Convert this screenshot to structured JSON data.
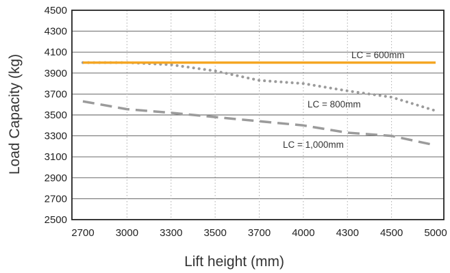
{
  "chart_data": {
    "type": "line",
    "title": "",
    "xlabel": "Lift height (mm)",
    "ylabel": "Load Capacity (kg)",
    "categories": [
      "2700",
      "3000",
      "3300",
      "3500",
      "3700",
      "4000",
      "4300",
      "4500",
      "5000"
    ],
    "y_ticks": [
      "2500",
      "2700",
      "2900",
      "3100",
      "3300",
      "3500",
      "3700",
      "3900",
      "4100",
      "4300",
      "4500"
    ],
    "ylim": [
      2500,
      4500
    ],
    "grid": {
      "x": "dotted",
      "y": "solid"
    },
    "series": [
      {
        "name": "LC = 600mm",
        "style": "solid",
        "color": "#f5a623",
        "values": [
          4000,
          4000,
          4000,
          4000,
          4000,
          4000,
          4000,
          4000,
          4000
        ]
      },
      {
        "name": "LC = 800mm",
        "style": "dotted",
        "color": "#9b9b9b",
        "values": [
          4000,
          4000,
          3980,
          3920,
          3830,
          3800,
          3730,
          3670,
          3540
        ]
      },
      {
        "name": "LC = 1,000mm",
        "style": "dashed",
        "color": "#9b9b9b",
        "values": [
          3630,
          3555,
          3520,
          3480,
          3440,
          3400,
          3330,
          3300,
          3210
        ]
      }
    ]
  }
}
